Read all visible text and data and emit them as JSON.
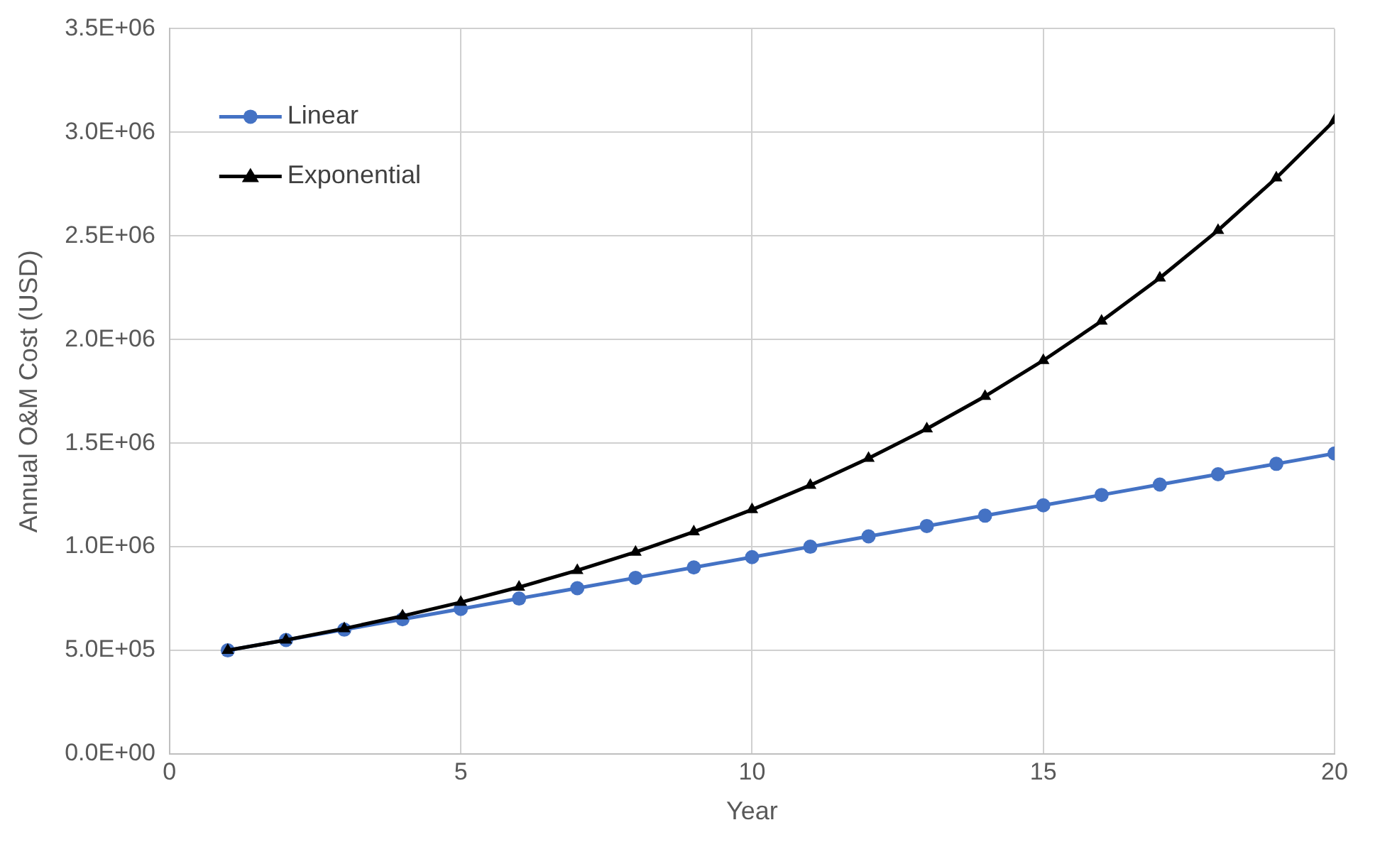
{
  "chart_data": {
    "type": "line",
    "xlabel": "Year",
    "ylabel": "Annual O&M Cost (USD)",
    "x": [
      1,
      2,
      3,
      4,
      5,
      6,
      7,
      8,
      9,
      10,
      11,
      12,
      13,
      14,
      15,
      16,
      17,
      18,
      19,
      20
    ],
    "series": [
      {
        "name": "Linear",
        "color": "#4472c4",
        "marker": "circle",
        "values": [
          500000,
          550000,
          600000,
          650000,
          700000,
          750000,
          800000,
          850000,
          900000,
          950000,
          1000000,
          1050000,
          1100000,
          1150000,
          1200000,
          1250000,
          1300000,
          1350000,
          1400000,
          1450000
        ]
      },
      {
        "name": "Exponential",
        "color": "#000000",
        "marker": "triangle",
        "values": [
          500000,
          550000,
          605000,
          666000,
          732000,
          805000,
          886000,
          974000,
          1072000,
          1179000,
          1297000,
          1427000,
          1569000,
          1726000,
          1899000,
          2089000,
          2297000,
          2527000,
          2780000,
          3058000
        ]
      }
    ],
    "xlim": [
      0,
      20
    ],
    "xticks": [
      0,
      5,
      10,
      15,
      20
    ],
    "ylim": [
      0,
      3500000
    ],
    "yticks": [
      {
        "value": 0,
        "label": "0.0E+00"
      },
      {
        "value": 500000,
        "label": "5.0E+05"
      },
      {
        "value": 1000000,
        "label": "1.0E+06"
      },
      {
        "value": 1500000,
        "label": "1.5E+06"
      },
      {
        "value": 2000000,
        "label": "2.0E+06"
      },
      {
        "value": 2500000,
        "label": "2.5E+06"
      },
      {
        "value": 3000000,
        "label": "3.0E+06"
      },
      {
        "value": 3500000,
        "label": "3.5E+06"
      }
    ],
    "grid": true,
    "legend": "top left",
    "line_style": "solid"
  }
}
